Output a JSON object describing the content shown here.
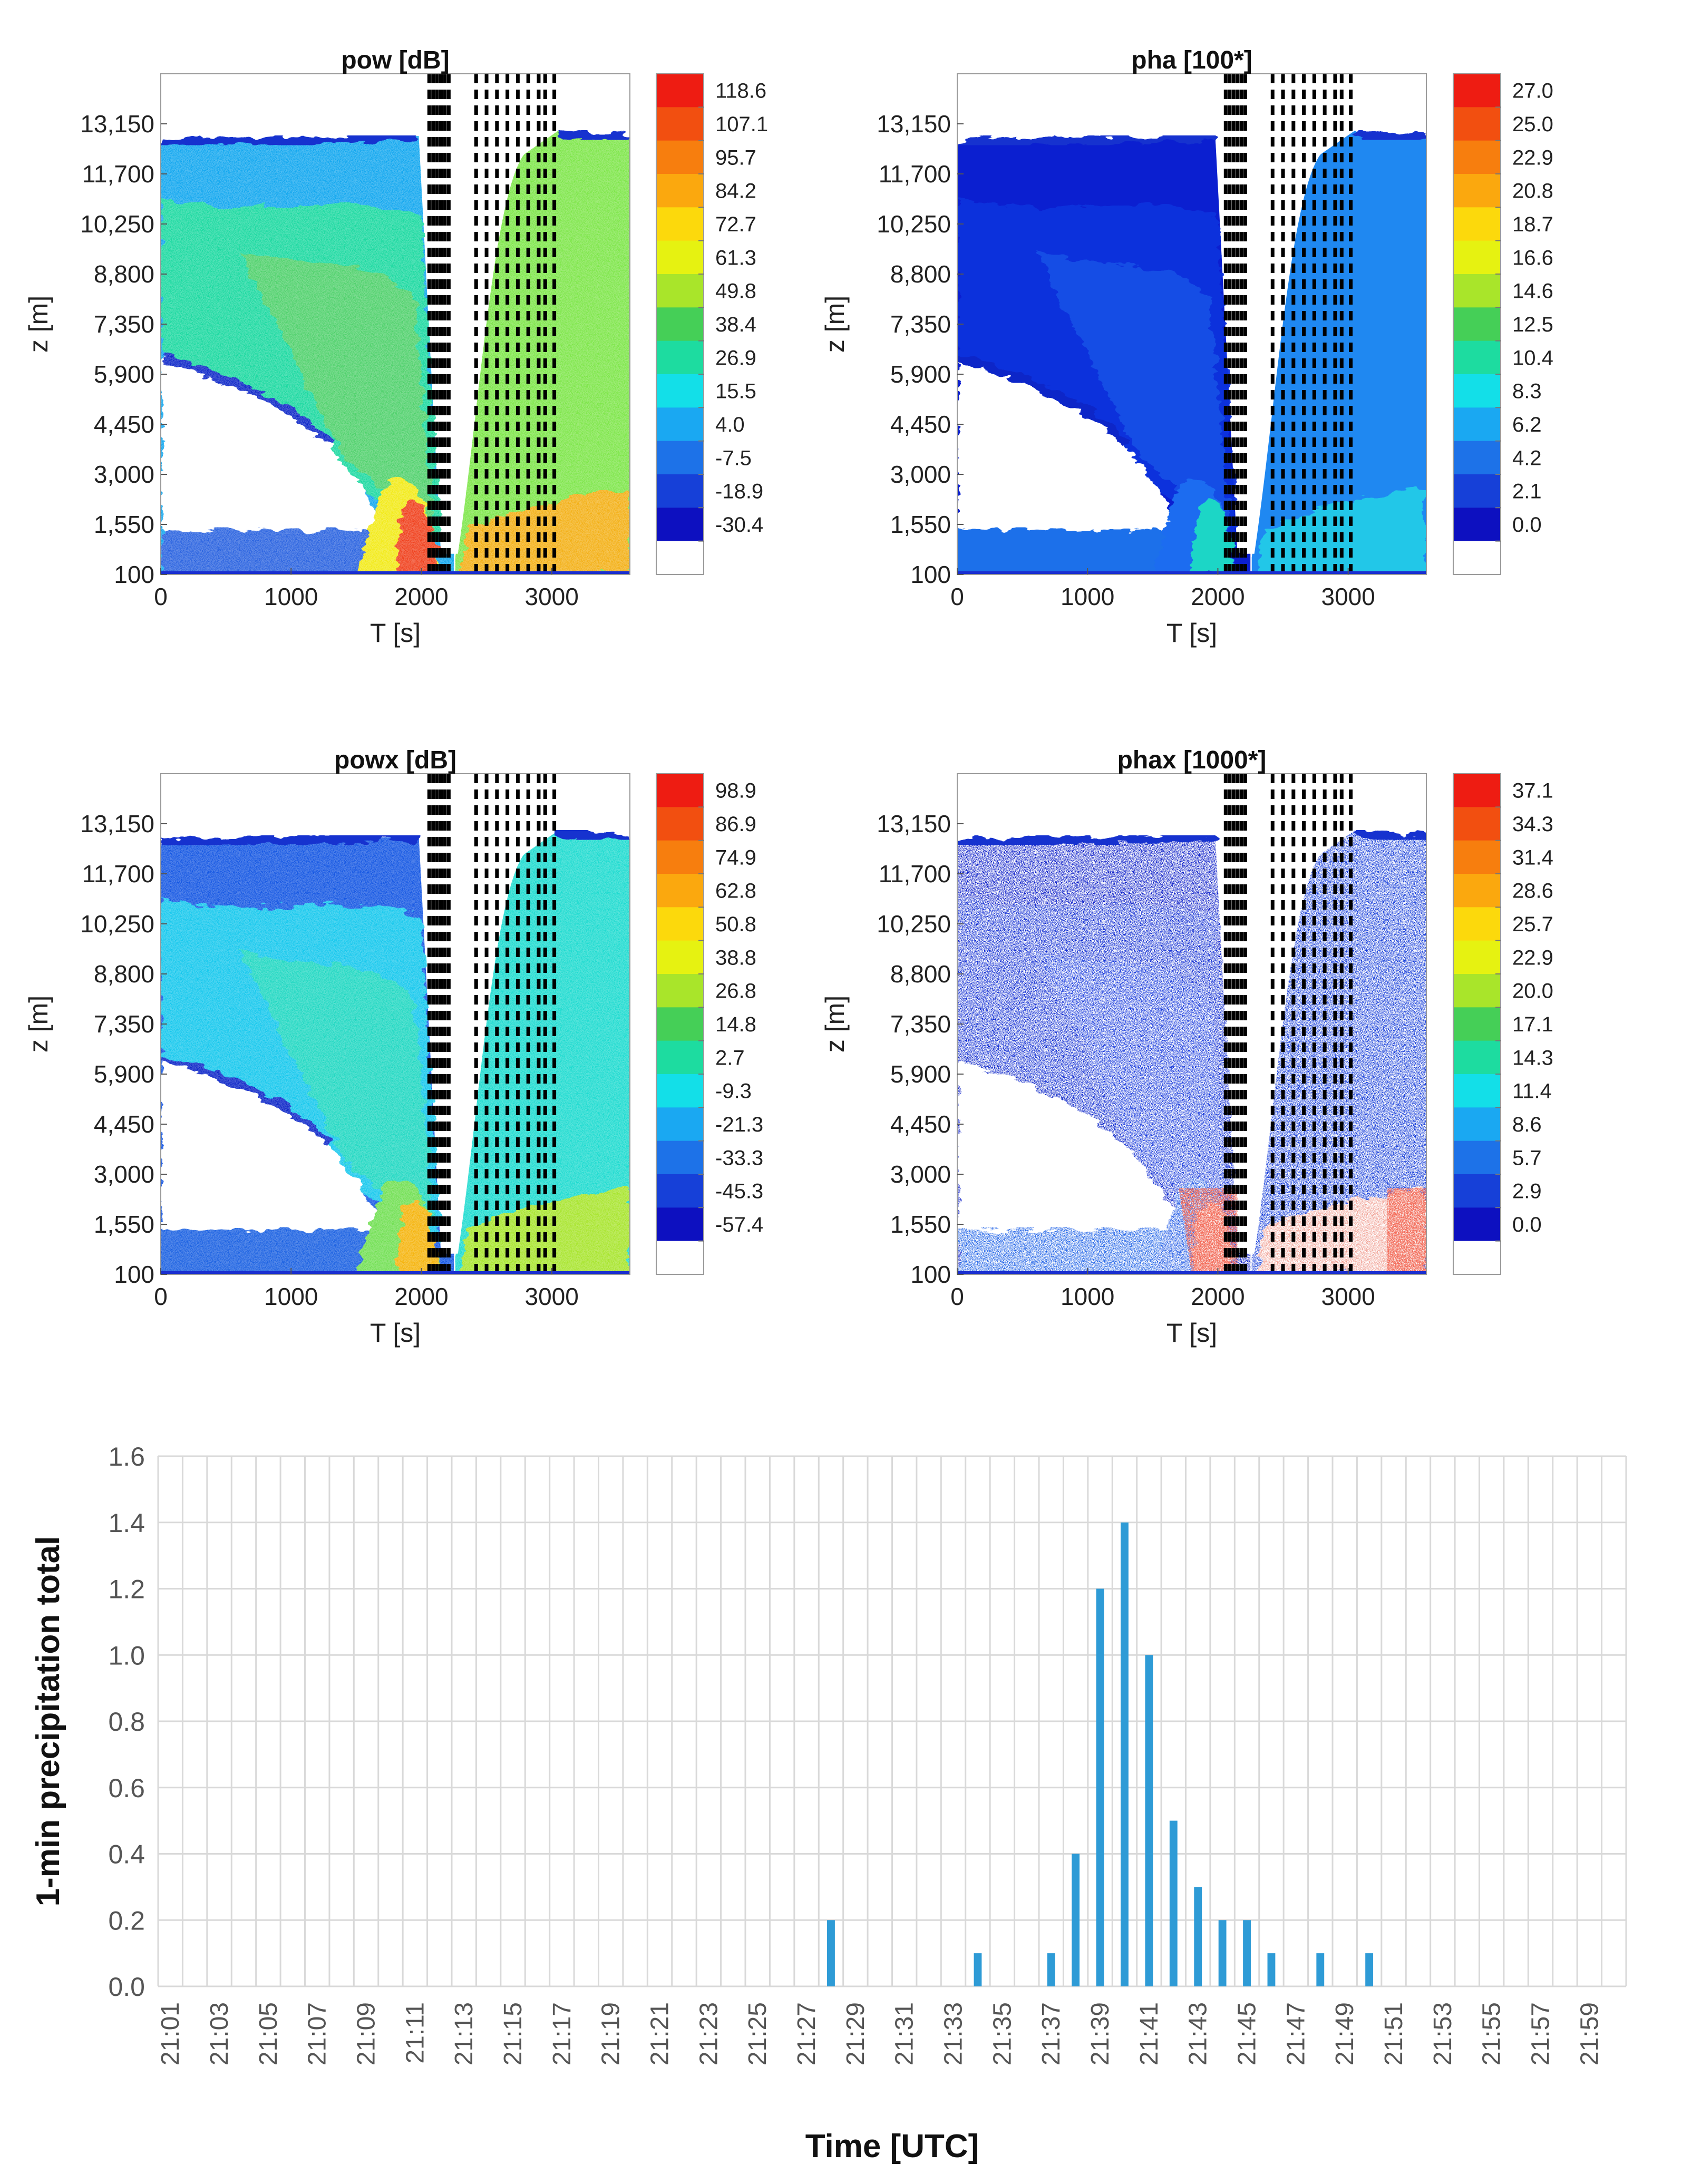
{
  "chart_data": [
    {
      "type": "heatmap",
      "title": "pow [dB]",
      "xlabel": "T [s]",
      "ylabel": "z [m]",
      "xlim": [
        0,
        3600
      ],
      "ylim": [
        100,
        14600
      ],
      "x_ticks": [
        "0",
        "1000",
        "2000",
        "3000"
      ],
      "x_tick_values": [
        0,
        1000,
        2000,
        3000
      ],
      "y_ticks": [
        "100",
        "1,550",
        "3,000",
        "4,450",
        "5,900",
        "7,350",
        "8,800",
        "10,250",
        "11,700",
        "13,150"
      ],
      "y_tick_values": [
        100,
        1550,
        3000,
        4450,
        5900,
        7350,
        8800,
        10250,
        11700,
        13150
      ],
      "colorbar_labels": [
        "118.6",
        "107.1",
        "95.7",
        "84.2",
        "72.7",
        "61.3",
        "49.8",
        "38.4",
        "26.9",
        "15.5",
        "4.0",
        "-7.5",
        "-18.9",
        "-30.4"
      ]
    },
    {
      "type": "heatmap",
      "title": "pha [100*]",
      "xlabel": "T [s]",
      "ylabel": "z [m]",
      "xlim": [
        0,
        3600
      ],
      "ylim": [
        100,
        14600
      ],
      "x_ticks": [
        "0",
        "1000",
        "2000",
        "3000"
      ],
      "x_tick_values": [
        0,
        1000,
        2000,
        3000
      ],
      "y_ticks": [
        "100",
        "1,550",
        "3,000",
        "4,450",
        "5,900",
        "7,350",
        "8,800",
        "10,250",
        "11,700",
        "13,150"
      ],
      "y_tick_values": [
        100,
        1550,
        3000,
        4450,
        5900,
        7350,
        8800,
        10250,
        11700,
        13150
      ],
      "colorbar_labels": [
        "27.0",
        "25.0",
        "22.9",
        "20.8",
        "18.7",
        "16.6",
        "14.6",
        "12.5",
        "10.4",
        "8.3",
        "6.2",
        "4.2",
        "2.1",
        "0.0"
      ]
    },
    {
      "type": "heatmap",
      "title": "powx [dB]",
      "xlabel": "T [s]",
      "ylabel": "z [m]",
      "xlim": [
        0,
        3600
      ],
      "ylim": [
        100,
        14600
      ],
      "x_ticks": [
        "0",
        "1000",
        "2000",
        "3000"
      ],
      "x_tick_values": [
        0,
        1000,
        2000,
        3000
      ],
      "y_ticks": [
        "100",
        "1,550",
        "3,000",
        "4,450",
        "5,900",
        "7,350",
        "8,800",
        "10,250",
        "11,700",
        "13,150"
      ],
      "y_tick_values": [
        100,
        1550,
        3000,
        4450,
        5900,
        7350,
        8800,
        10250,
        11700,
        13150
      ],
      "colorbar_labels": [
        "98.9",
        "86.9",
        "74.9",
        "62.8",
        "50.8",
        "38.8",
        "26.8",
        "14.8",
        "2.7",
        "-9.3",
        "-21.3",
        "-33.3",
        "-45.3",
        "-57.4"
      ]
    },
    {
      "type": "heatmap",
      "title": "phax [1000*]",
      "xlabel": "T [s]",
      "ylabel": "z [m]",
      "xlim": [
        0,
        3600
      ],
      "ylim": [
        100,
        14600
      ],
      "x_ticks": [
        "0",
        "1000",
        "2000",
        "3000"
      ],
      "x_tick_values": [
        0,
        1000,
        2000,
        3000
      ],
      "y_ticks": [
        "100",
        "1,550",
        "3,000",
        "4,450",
        "5,900",
        "7,350",
        "8,800",
        "10,250",
        "11,700",
        "13,150"
      ],
      "y_tick_values": [
        100,
        1550,
        3000,
        4450,
        5900,
        7350,
        8800,
        10250,
        11700,
        13150
      ],
      "colorbar_labels": [
        "37.1",
        "34.3",
        "31.4",
        "28.6",
        "25.7",
        "22.9",
        "20.0",
        "17.1",
        "14.3",
        "11.4",
        "8.6",
        "5.7",
        "2.9",
        "0.0"
      ]
    },
    {
      "type": "bar",
      "title": "",
      "xlabel": "Time [UTC]",
      "ylabel": "1-min precipitation total",
      "ylim": [
        0,
        1.6
      ],
      "y_ticks": [
        "0.0",
        "0.2",
        "0.4",
        "0.6",
        "0.8",
        "1.0",
        "1.2",
        "1.4",
        "1.6"
      ],
      "color": "#2e9bd6",
      "categories": [
        "21:01",
        "21:02",
        "21:03",
        "21:04",
        "21:05",
        "21:06",
        "21:07",
        "21:08",
        "21:09",
        "21:10",
        "21:11",
        "21:12",
        "21:13",
        "21:14",
        "21:15",
        "21:16",
        "21:17",
        "21:18",
        "21:19",
        "21:20",
        "21:21",
        "21:22",
        "21:23",
        "21:24",
        "21:25",
        "21:26",
        "21:27",
        "21:28",
        "21:29",
        "21:30",
        "21:31",
        "21:32",
        "21:33",
        "21:34",
        "21:35",
        "21:36",
        "21:37",
        "21:38",
        "21:39",
        "21:40",
        "21:41",
        "21:42",
        "21:43",
        "21:44",
        "21:45",
        "21:46",
        "21:47",
        "21:48",
        "21:49",
        "21:50",
        "21:51",
        "21:52",
        "21:53",
        "21:54",
        "21:55",
        "21:56",
        "21:57",
        "21:58",
        "21:59",
        "22:00"
      ],
      "values": [
        0,
        0,
        0,
        0,
        0,
        0,
        0,
        0,
        0,
        0,
        0,
        0,
        0,
        0,
        0,
        0,
        0,
        0,
        0,
        0,
        0,
        0,
        0,
        0,
        0,
        0,
        0,
        0.2,
        0,
        0,
        0,
        0,
        0,
        0.1,
        0,
        0,
        0.1,
        0.4,
        1.2,
        1.4,
        1.0,
        0.5,
        0.3,
        0.2,
        0.2,
        0.1,
        0,
        0.1,
        0,
        0.1,
        0,
        0,
        0,
        0,
        0,
        0,
        0,
        0,
        0,
        0
      ],
      "tick_labels": [
        "21:01",
        "21:03",
        "21:05",
        "21:07",
        "21:09",
        "21:11",
        "21:13",
        "21:15",
        "21:17",
        "21:19",
        "21:21",
        "21:23",
        "21:25",
        "21:27",
        "21:29",
        "21:31",
        "21:33",
        "21:35",
        "21:37",
        "21:39",
        "21:41",
        "21:43",
        "21:45",
        "21:47",
        "21:49",
        "21:51",
        "21:53",
        "21:55",
        "21:57",
        "21:59"
      ]
    }
  ]
}
